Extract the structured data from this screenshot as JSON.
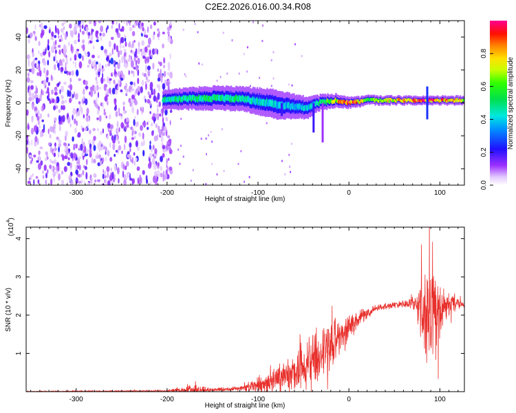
{
  "title": "C2E2.2026.016.00.34.R08",
  "chart_data": [
    {
      "type": "heatmap",
      "name": "spectrogram",
      "xlabel": "Height of straight line (km)",
      "ylabel": "Frequency (Hz)",
      "xlim": [
        -355,
        127
      ],
      "ylim": [
        -50,
        50
      ],
      "xticks": [
        "-300",
        "-200",
        "-100",
        "0",
        "100"
      ],
      "xtick_values": [
        -300,
        -200,
        -100,
        0,
        100
      ],
      "yticks": [
        "-40",
        "-20",
        "0",
        "20",
        "40"
      ],
      "ytick_values": [
        -40,
        -20,
        0,
        20,
        40
      ],
      "colorbar": {
        "label": "Normalized spectral amplitude",
        "range": [
          0,
          1
        ],
        "ticks": [
          "0.0",
          "0.2",
          "0.4",
          "0.6",
          "0.8"
        ],
        "tick_values": [
          0.0,
          0.2,
          0.4,
          0.6,
          0.8
        ]
      },
      "noise_region_x": [
        -355,
        -195
      ],
      "signal_track": [
        {
          "x": -205,
          "f": 2.0,
          "w": 3.5,
          "a": 0.45
        },
        {
          "x": -180,
          "f": 2.5,
          "w": 4.0,
          "a": 0.5
        },
        {
          "x": -150,
          "f": 3.0,
          "w": 4.5,
          "a": 0.5
        },
        {
          "x": -120,
          "f": 2.5,
          "w": 4.5,
          "a": 0.48
        },
        {
          "x": -100,
          "f": 1.0,
          "w": 5.0,
          "a": 0.45
        },
        {
          "x": -80,
          "f": -1.0,
          "w": 5.5,
          "a": 0.4
        },
        {
          "x": -60,
          "f": -2.0,
          "w": 4.5,
          "a": 0.4
        },
        {
          "x": -45,
          "f": -3.0,
          "w": 4.0,
          "a": 0.4
        },
        {
          "x": -35,
          "f": 0.0,
          "w": 3.0,
          "a": 0.45
        },
        {
          "x": -15,
          "f": 1.5,
          "w": 2.5,
          "a": 0.75
        },
        {
          "x": 0,
          "f": 0.0,
          "w": 2.0,
          "a": 0.95
        },
        {
          "x": 20,
          "f": 1.5,
          "w": 1.8,
          "a": 0.6
        },
        {
          "x": 50,
          "f": 1.5,
          "w": 1.6,
          "a": 0.75
        },
        {
          "x": 80,
          "f": 1.5,
          "w": 1.6,
          "a": 0.92
        },
        {
          "x": 100,
          "f": 1.5,
          "w": 1.6,
          "a": 0.85
        },
        {
          "x": 127,
          "f": 1.5,
          "w": 1.6,
          "a": 0.7
        }
      ]
    },
    {
      "type": "line",
      "name": "snr",
      "xlabel": "Height of straight line (km)",
      "ylabel": "SNR (10 * v/v)",
      "multiplier": "(x10",
      "multiplier_exp": "4",
      "multiplier_close": ")",
      "xlim": [
        -355,
        127
      ],
      "ylim": [
        0,
        4.3
      ],
      "xticks": [
        "-300",
        "-200",
        "-100",
        "0",
        "100"
      ],
      "xtick_values": [
        -300,
        -200,
        -100,
        0,
        100
      ],
      "yticks": [
        "1",
        "2",
        "3",
        "4"
      ],
      "ytick_values": [
        1,
        2,
        3,
        4
      ],
      "color": "#e8302c",
      "envelope": [
        {
          "x": -355,
          "y": 0.0,
          "n": 0.02
        },
        {
          "x": -200,
          "y": 0.02,
          "n": 0.02
        },
        {
          "x": -170,
          "y": 0.05,
          "n": 0.15
        },
        {
          "x": -150,
          "y": 0.05,
          "n": 0.06
        },
        {
          "x": -120,
          "y": 0.08,
          "n": 0.08
        },
        {
          "x": -100,
          "y": 0.15,
          "n": 0.25
        },
        {
          "x": -80,
          "y": 0.3,
          "n": 0.4
        },
        {
          "x": -60,
          "y": 0.5,
          "n": 0.6
        },
        {
          "x": -40,
          "y": 0.85,
          "n": 0.8
        },
        {
          "x": -20,
          "y": 1.25,
          "n": 0.8
        },
        {
          "x": -5,
          "y": 1.55,
          "n": 0.5
        },
        {
          "x": 10,
          "y": 1.9,
          "n": 0.25
        },
        {
          "x": 30,
          "y": 2.2,
          "n": 0.1
        },
        {
          "x": 60,
          "y": 2.3,
          "n": 0.12
        },
        {
          "x": 75,
          "y": 2.3,
          "n": 0.3
        },
        {
          "x": 85,
          "y": 2.2,
          "n": 1.9
        },
        {
          "x": 95,
          "y": 2.0,
          "n": 1.4
        },
        {
          "x": 105,
          "y": 2.3,
          "n": 0.5
        },
        {
          "x": 115,
          "y": 2.3,
          "n": 0.35
        },
        {
          "x": 127,
          "y": 2.25,
          "n": 0.05
        }
      ]
    }
  ]
}
